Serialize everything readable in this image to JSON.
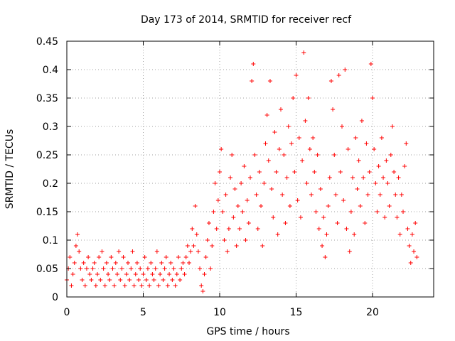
{
  "chart_data": {
    "type": "scatter",
    "title": "Day 173 of 2014, SRMTID for receiver recf",
    "xlabel": "GPS time / hours",
    "ylabel": "SRMTID / TECUs",
    "xlim": [
      0,
      24
    ],
    "ylim": [
      0,
      0.45
    ],
    "xticks": [
      "0",
      "5",
      "10",
      "15",
      "20"
    ],
    "yticks": [
      "0",
      "0.05",
      "0.1",
      "0.15",
      "0.2",
      "0.25",
      "0.3",
      "0.35",
      "0.4",
      "0.45"
    ],
    "grid": true,
    "marker": "+",
    "color": "#ff0000",
    "series": [
      {
        "points": [
          [
            0.0,
            0.03
          ],
          [
            0.1,
            0.05
          ],
          [
            0.2,
            0.07
          ],
          [
            0.3,
            0.02
          ],
          [
            0.4,
            0.04
          ],
          [
            0.5,
            0.06
          ],
          [
            0.6,
            0.09
          ],
          [
            0.7,
            0.11
          ],
          [
            0.8,
            0.08
          ],
          [
            0.9,
            0.05
          ],
          [
            1.0,
            0.03
          ],
          [
            1.1,
            0.06
          ],
          [
            1.2,
            0.02
          ],
          [
            1.3,
            0.05
          ],
          [
            1.4,
            0.07
          ],
          [
            1.5,
            0.04
          ],
          [
            1.6,
            0.03
          ],
          [
            1.7,
            0.05
          ],
          [
            1.8,
            0.06
          ],
          [
            1.9,
            0.02
          ],
          [
            2.0,
            0.04
          ],
          [
            2.1,
            0.07
          ],
          [
            2.2,
            0.03
          ],
          [
            2.3,
            0.08
          ],
          [
            2.4,
            0.05
          ],
          [
            2.5,
            0.02
          ],
          [
            2.6,
            0.06
          ],
          [
            2.7,
            0.04
          ],
          [
            2.8,
            0.03
          ],
          [
            2.9,
            0.07
          ],
          [
            3.0,
            0.05
          ],
          [
            3.1,
            0.02
          ],
          [
            3.2,
            0.06
          ],
          [
            3.3,
            0.04
          ],
          [
            3.4,
            0.08
          ],
          [
            3.5,
            0.03
          ],
          [
            3.6,
            0.05
          ],
          [
            3.7,
            0.07
          ],
          [
            3.8,
            0.02
          ],
          [
            3.9,
            0.04
          ],
          [
            4.0,
            0.06
          ],
          [
            4.1,
            0.03
          ],
          [
            4.2,
            0.05
          ],
          [
            4.3,
            0.08
          ],
          [
            4.4,
            0.02
          ],
          [
            4.5,
            0.04
          ],
          [
            4.6,
            0.06
          ],
          [
            4.7,
            0.03
          ],
          [
            4.8,
            0.05
          ],
          [
            4.9,
            0.02
          ],
          [
            5.0,
            0.04
          ],
          [
            5.1,
            0.07
          ],
          [
            5.2,
            0.03
          ],
          [
            5.3,
            0.05
          ],
          [
            5.4,
            0.02
          ],
          [
            5.5,
            0.06
          ],
          [
            5.6,
            0.04
          ],
          [
            5.7,
            0.03
          ],
          [
            5.8,
            0.05
          ],
          [
            5.9,
            0.08
          ],
          [
            6.0,
            0.02
          ],
          [
            6.1,
            0.04
          ],
          [
            6.2,
            0.06
          ],
          [
            6.3,
            0.03
          ],
          [
            6.4,
            0.05
          ],
          [
            6.5,
            0.07
          ],
          [
            6.6,
            0.02
          ],
          [
            6.7,
            0.04
          ],
          [
            6.8,
            0.06
          ],
          [
            6.9,
            0.03
          ],
          [
            7.0,
            0.05
          ],
          [
            7.1,
            0.02
          ],
          [
            7.2,
            0.04
          ],
          [
            7.3,
            0.07
          ],
          [
            7.4,
            0.03
          ],
          [
            7.5,
            0.05
          ],
          [
            7.6,
            0.06
          ],
          [
            7.7,
            0.04
          ],
          [
            7.8,
            0.07
          ],
          [
            7.9,
            0.09
          ],
          [
            8.0,
            0.06
          ],
          [
            8.1,
            0.08
          ],
          [
            8.2,
            0.12
          ],
          [
            8.3,
            0.09
          ],
          [
            8.4,
            0.16
          ],
          [
            8.5,
            0.11
          ],
          [
            8.6,
            0.08
          ],
          [
            8.7,
            0.05
          ],
          [
            8.8,
            0.02
          ],
          [
            8.9,
            0.01
          ],
          [
            9.0,
            0.04
          ],
          [
            9.1,
            0.07
          ],
          [
            9.2,
            0.1
          ],
          [
            9.3,
            0.13
          ],
          [
            9.4,
            0.05
          ],
          [
            9.5,
            0.09
          ],
          [
            9.6,
            0.15
          ],
          [
            9.7,
            0.2
          ],
          [
            9.8,
            0.12
          ],
          [
            9.9,
            0.17
          ],
          [
            10.0,
            0.22
          ],
          [
            10.1,
            0.26
          ],
          [
            10.2,
            0.15
          ],
          [
            10.3,
            0.1
          ],
          [
            10.4,
            0.18
          ],
          [
            10.5,
            0.08
          ],
          [
            10.6,
            0.12
          ],
          [
            10.7,
            0.21
          ],
          [
            10.8,
            0.25
          ],
          [
            10.9,
            0.14
          ],
          [
            11.0,
            0.19
          ],
          [
            11.1,
            0.09
          ],
          [
            11.2,
            0.16
          ],
          [
            11.3,
            0.12
          ],
          [
            11.4,
            0.2
          ],
          [
            11.5,
            0.15
          ],
          [
            11.6,
            0.23
          ],
          [
            11.7,
            0.1
          ],
          [
            11.8,
            0.17
          ],
          [
            11.9,
            0.13
          ],
          [
            12.0,
            0.21
          ],
          [
            12.1,
            0.38
          ],
          [
            12.2,
            0.41
          ],
          [
            12.3,
            0.25
          ],
          [
            12.4,
            0.18
          ],
          [
            12.5,
            0.12
          ],
          [
            12.6,
            0.22
          ],
          [
            12.7,
            0.16
          ],
          [
            12.8,
            0.09
          ],
          [
            12.9,
            0.2
          ],
          [
            13.0,
            0.27
          ],
          [
            13.1,
            0.32
          ],
          [
            13.2,
            0.24
          ],
          [
            13.3,
            0.38
          ],
          [
            13.4,
            0.19
          ],
          [
            13.5,
            0.14
          ],
          [
            13.6,
            0.29
          ],
          [
            13.7,
            0.22
          ],
          [
            13.8,
            0.11
          ],
          [
            13.9,
            0.26
          ],
          [
            14.0,
            0.33
          ],
          [
            14.1,
            0.18
          ],
          [
            14.2,
            0.25
          ],
          [
            14.3,
            0.13
          ],
          [
            14.4,
            0.21
          ],
          [
            14.5,
            0.3
          ],
          [
            14.6,
            0.16
          ],
          [
            14.7,
            0.27
          ],
          [
            14.8,
            0.35
          ],
          [
            14.9,
            0.22
          ],
          [
            15.0,
            0.39
          ],
          [
            15.1,
            0.17
          ],
          [
            15.2,
            0.28
          ],
          [
            15.3,
            0.14
          ],
          [
            15.4,
            0.24
          ],
          [
            15.5,
            0.43
          ],
          [
            15.6,
            0.31
          ],
          [
            15.7,
            0.2
          ],
          [
            15.8,
            0.35
          ],
          [
            15.9,
            0.26
          ],
          [
            16.0,
            0.18
          ],
          [
            16.1,
            0.28
          ],
          [
            16.2,
            0.22
          ],
          [
            16.3,
            0.15
          ],
          [
            16.4,
            0.25
          ],
          [
            16.5,
            0.12
          ],
          [
            16.6,
            0.19
          ],
          [
            16.7,
            0.09
          ],
          [
            16.8,
            0.14
          ],
          [
            16.9,
            0.07
          ],
          [
            17.0,
            0.11
          ],
          [
            17.1,
            0.16
          ],
          [
            17.2,
            0.21
          ],
          [
            17.3,
            0.38
          ],
          [
            17.4,
            0.33
          ],
          [
            17.5,
            0.25
          ],
          [
            17.6,
            0.18
          ],
          [
            17.7,
            0.13
          ],
          [
            17.8,
            0.39
          ],
          [
            17.9,
            0.22
          ],
          [
            18.0,
            0.3
          ],
          [
            18.1,
            0.17
          ],
          [
            18.2,
            0.4
          ],
          [
            18.3,
            0.12
          ],
          [
            18.4,
            0.26
          ],
          [
            18.5,
            0.08
          ],
          [
            18.6,
            0.15
          ],
          [
            18.7,
            0.21
          ],
          [
            18.8,
            0.11
          ],
          [
            18.9,
            0.28
          ],
          [
            19.0,
            0.19
          ],
          [
            19.1,
            0.24
          ],
          [
            19.2,
            0.16
          ],
          [
            19.3,
            0.31
          ],
          [
            19.4,
            0.21
          ],
          [
            19.5,
            0.13
          ],
          [
            19.6,
            0.27
          ],
          [
            19.7,
            0.18
          ],
          [
            19.8,
            0.22
          ],
          [
            19.9,
            0.41
          ],
          [
            20.0,
            0.35
          ],
          [
            20.1,
            0.26
          ],
          [
            20.2,
            0.2
          ],
          [
            20.3,
            0.15
          ],
          [
            20.4,
            0.23
          ],
          [
            20.5,
            0.18
          ],
          [
            20.6,
            0.28
          ],
          [
            20.7,
            0.21
          ],
          [
            20.8,
            0.14
          ],
          [
            20.9,
            0.24
          ],
          [
            21.0,
            0.2
          ],
          [
            21.1,
            0.16
          ],
          [
            21.2,
            0.25
          ],
          [
            21.3,
            0.3
          ],
          [
            21.4,
            0.22
          ],
          [
            21.5,
            0.18
          ],
          [
            21.6,
            0.14
          ],
          [
            21.7,
            0.21
          ],
          [
            21.8,
            0.11
          ],
          [
            21.9,
            0.18
          ],
          [
            22.0,
            0.15
          ],
          [
            22.1,
            0.23
          ],
          [
            22.2,
            0.27
          ],
          [
            22.3,
            0.12
          ],
          [
            22.4,
            0.09
          ],
          [
            22.5,
            0.06
          ],
          [
            22.6,
            0.11
          ],
          [
            22.7,
            0.08
          ],
          [
            22.8,
            0.13
          ],
          [
            22.9,
            0.07
          ]
        ]
      }
    ]
  }
}
